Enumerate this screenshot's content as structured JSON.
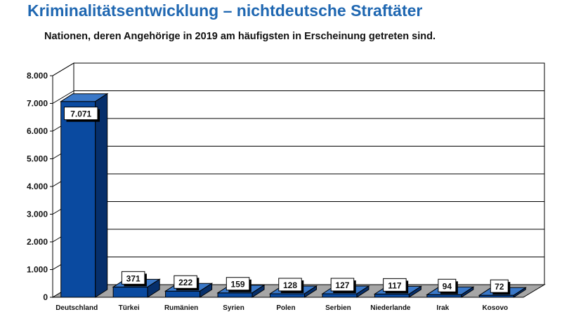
{
  "header": {
    "title": "Kriminalitätsentwicklung – nichtdeutsche Straftäter",
    "subtitle": "Nationen, deren Angehörige in 2019 am häufigsten in Erscheinung getreten sind."
  },
  "chart_data": {
    "type": "bar",
    "title": "",
    "xlabel": "",
    "ylabel": "",
    "categories": [
      "Deutschland",
      "Türkei",
      "Rumänien",
      "Syrien",
      "Polen",
      "Serbien",
      "Niederlande",
      "Irak",
      "Kosovo"
    ],
    "values": [
      7071,
      371,
      222,
      159,
      128,
      127,
      117,
      94,
      72
    ],
    "data_labels": [
      "7.071",
      "371",
      "222",
      "159",
      "128",
      "127",
      "117",
      "94",
      "72"
    ],
    "ylim": [
      0,
      8000
    ],
    "y_ticks": [
      0,
      1000,
      2000,
      3000,
      4000,
      5000,
      6000,
      7000,
      8000
    ],
    "y_tick_labels": [
      "0",
      "1.000",
      "2.000",
      "3.000",
      "4.000",
      "5.000",
      "6.000",
      "7.000",
      "8.000"
    ],
    "grid": true,
    "legend": "none",
    "bar_color": "#0a4aa0",
    "bar_top_color": "#3a78c8",
    "bar_side_color": "#062f6b",
    "floor_color": "#a6a6a6"
  }
}
